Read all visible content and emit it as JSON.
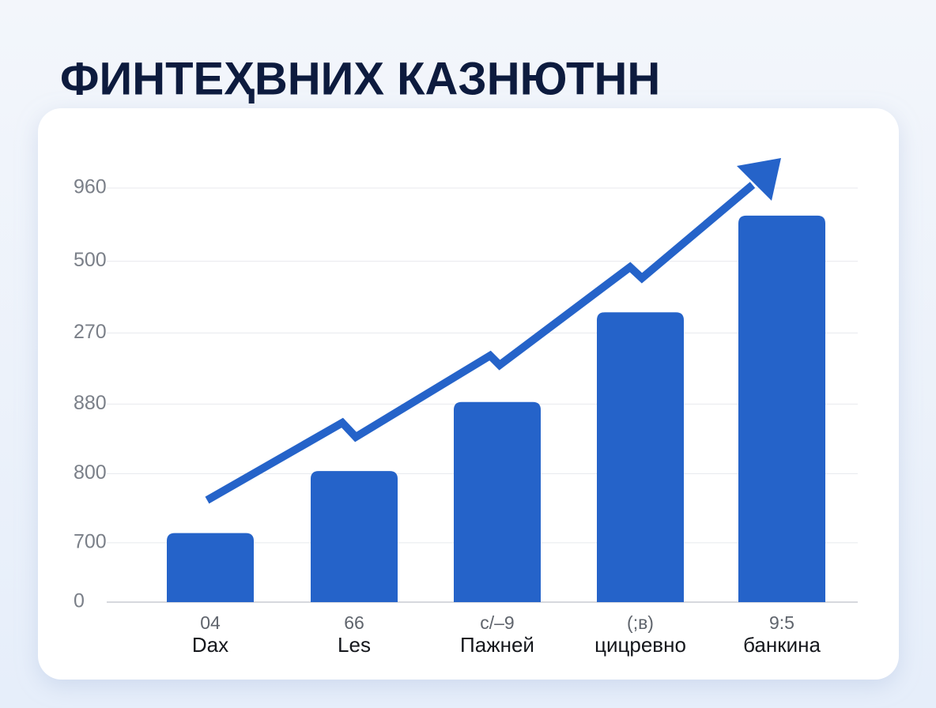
{
  "chart_data": {
    "type": "bar",
    "title": "ФИНТЕҲВНИХ КАЗНЮТНН",
    "categories": [
      "Dax",
      "Les",
      "Пажней",
      "цицревно",
      "банкина"
    ],
    "category_codes": [
      "04",
      "66",
      "c/–9",
      "(;ʙ)",
      "9:5"
    ],
    "values": [
      1.0,
      1.9,
      2.9,
      4.2,
      5.6
    ],
    "color": "#2563c9",
    "ylim": [
      0,
      6.2
    ],
    "yticks": [
      0,
      {
        "value": 0.86,
        "label": "700"
      },
      {
        "value": 1.86,
        "label": "800"
      },
      {
        "value": 2.87,
        "label": "880"
      },
      {
        "value": 3.9,
        "label": "270"
      },
      {
        "value": 4.94,
        "label": "500"
      },
      {
        "value": 6.0,
        "label": "960"
      }
    ],
    "grid": true
  }
}
